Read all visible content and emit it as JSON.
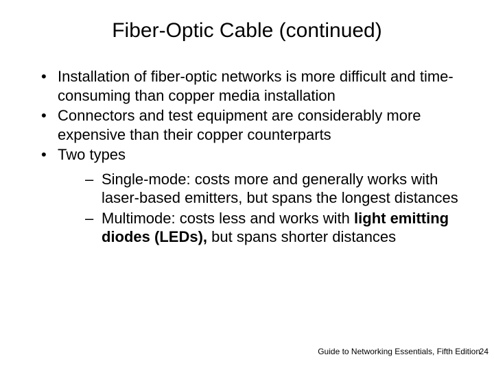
{
  "title": "Fiber-Optic Cable (continued)",
  "bullets": {
    "b1": "Installation of fiber-optic networks is more difficult and time-consuming than copper media installation",
    "b2": "Connectors and test equipment are considerably more expensive than their copper counterparts",
    "b3": "Two types",
    "s1": "Single-mode: costs more and generally works with laser-based emitters, but spans the longest distances",
    "s2_a": "Multimode: costs less and works with ",
    "s2_b": "light emitting diodes (LEDs), ",
    "s2_c": "but spans shorter distances"
  },
  "footer": "Guide to Networking Essentials, Fifth Edition",
  "page": "24",
  "colors": {
    "background": "#ffffff",
    "text": "#000000"
  },
  "fontsize": {
    "title_pt": 30,
    "body_pt": 22,
    "footer_pt": 12
  }
}
